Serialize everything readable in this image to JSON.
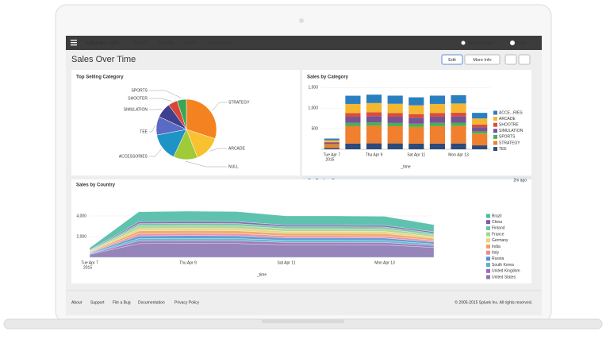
{
  "nav": {
    "logo": "splunk>",
    "product": "light",
    "items": [
      "Search",
      "Reports",
      "Alerts",
      "Dashboards"
    ],
    "user": "Administrator",
    "help": "Help"
  },
  "header": {
    "title": "Sales Over Time",
    "buttons": [
      "Edit",
      "More Info"
    ]
  },
  "panels": [
    {
      "type": "pie",
      "title": "Top Selling Category",
      "categories": [
        "STRATEGY",
        "ARCADE",
        "NULL",
        "ACCESSORIES",
        "TEE",
        "SIMULATION",
        "SHOOTER",
        "SPORTS"
      ],
      "values": [
        30,
        14,
        13,
        15,
        10,
        8,
        5,
        5
      ],
      "colors": [
        "#f58220",
        "#f7c12f",
        "#9fcb3b",
        "#1e93c6",
        "#5b6bc4",
        "#3f3f8f",
        "#d7463a",
        "#3aa655"
      ]
    },
    {
      "type": "stacked_bar",
      "title": "Sales by Category",
      "x_label": "_time",
      "year_label": "2015",
      "status": "2m ago",
      "categories": [
        "Tue Apr 7",
        null,
        "Thu Apr 9",
        null,
        "Sat Apr 11",
        null,
        "Mon Apr 13",
        null
      ],
      "ylim": [
        0,
        1600
      ],
      "yticks": [
        500,
        {
          "value": 1000,
          "label": "1,000"
        },
        {
          "value": 1500,
          "label": "1,500"
        }
      ],
      "grid": true,
      "series": [
        {
          "name": "ACCE...RIES",
          "color": "#2a7fc1",
          "values": [
            40,
            200,
            204,
            198,
            194,
            202,
            202,
            136
          ]
        },
        {
          "name": "ARCADE",
          "color": "#f5b731",
          "values": [
            44,
            220,
            224,
            226,
            213,
            218,
            222,
            150
          ]
        },
        {
          "name": "SHOOTRE",
          "color": "#d94e3b",
          "values": [
            18,
            90,
            92,
            88,
            87,
            91,
            91,
            61
          ]
        },
        {
          "name": "SIMULATION",
          "color": "#7a5195",
          "values": [
            30,
            150,
            153,
            152,
            146,
            149,
            152,
            102
          ]
        },
        {
          "name": "SPORTS",
          "color": "#4caf50",
          "values": [
            16,
            80,
            82,
            78,
            78,
            81,
            81,
            54
          ]
        },
        {
          "name": "STRATEGY",
          "color": "#f07f2e",
          "values": [
            84,
            420,
            428,
            418,
            407,
            422,
            424,
            286
          ]
        },
        {
          "name": "TEE",
          "color": "#2c4a7c",
          "values": [
            28,
            140,
            143,
            142,
            136,
            139,
            141,
            95
          ]
        }
      ]
    },
    {
      "type": "stacked_area",
      "title": "Sales by Country",
      "x_label": "_time",
      "year_label": "2015",
      "categories": [
        "Tue Apr 7",
        null,
        "Thu Apr 9",
        null,
        "Sat Apr 11",
        null,
        "Mon Apr 13",
        null
      ],
      "ylim": [
        0,
        5500
      ],
      "yticks": [
        {
          "value": 2000,
          "label": "2,000"
        },
        {
          "value": 4000,
          "label": "4,000"
        }
      ],
      "grid": true,
      "series": [
        {
          "name": "Brazil",
          "color": "#4cbba6",
          "values": [
            198,
            968,
            981,
            972,
            880,
            880,
            871,
            693
          ]
        },
        {
          "name": "China",
          "color": "#7b5aa6",
          "values": [
            36,
            176,
            178,
            177,
            160,
            160,
            158,
            126
          ]
        },
        {
          "name": "Finland",
          "color": "#6cc2a8",
          "values": [
            45,
            220,
            223,
            221,
            200,
            200,
            198,
            158
          ]
        },
        {
          "name": "France",
          "color": "#a8d48b",
          "values": [
            54,
            264,
            268,
            265,
            240,
            240,
            238,
            189
          ]
        },
        {
          "name": "Germany",
          "color": "#e6d27a",
          "values": [
            45,
            220,
            223,
            221,
            200,
            200,
            198,
            158
          ]
        },
        {
          "name": "India",
          "color": "#f0a35c",
          "values": [
            54,
            264,
            268,
            265,
            240,
            240,
            238,
            189
          ]
        },
        {
          "name": "Italy",
          "color": "#e48aa0",
          "values": [
            45,
            220,
            223,
            221,
            200,
            200,
            198,
            158
          ]
        },
        {
          "name": "Russia",
          "color": "#5b8fd1",
          "values": [
            54,
            264,
            268,
            265,
            240,
            240,
            238,
            189
          ]
        },
        {
          "name": "South Korea",
          "color": "#52b6c8",
          "values": [
            45,
            220,
            223,
            221,
            200,
            200,
            198,
            158
          ]
        },
        {
          "name": "United Kingdom",
          "color": "#9b6bb7",
          "values": [
            54,
            264,
            268,
            265,
            240,
            240,
            238,
            189
          ]
        },
        {
          "name": "United States",
          "color": "#8a78b4",
          "values": [
            270,
            1320,
            1338,
            1326,
            1200,
            1200,
            1188,
            945
          ]
        }
      ]
    }
  ],
  "footer": {
    "links": [
      "About",
      "Support",
      "File a Bug",
      "Documentation",
      "Privacy Policy"
    ],
    "copyright": "© 2005-2015 Splunk Inc. All rights reserved."
  }
}
